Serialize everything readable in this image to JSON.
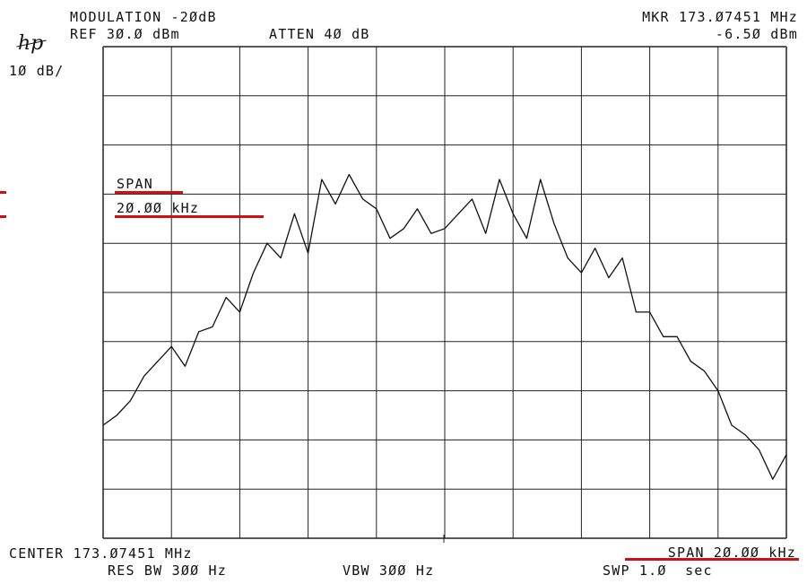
{
  "header": {
    "title": "MODULATION -2ØdB",
    "ref": "REF 3Ø.Ø dBm",
    "atten": "ATTEN 4Ø dB",
    "marker_freq": "MKR 173.Ø7451 MHz",
    "marker_level": "-6.5Ø dBm",
    "scale": "1Ø dB/"
  },
  "brand": {
    "logo": "hp"
  },
  "annotation": {
    "span_label": "SPAN",
    "span_value": "2Ø.ØØ kHz"
  },
  "footer": {
    "center": "CENTER 173.Ø7451 MHz",
    "span": "SPAN 2Ø.ØØ kHz",
    "res_bw": "RES BW 3ØØ Hz",
    "vbw": "VBW 3ØØ Hz",
    "swp": "SWP 1.Ø  sec"
  },
  "colors": {
    "trace": "#111111",
    "grid": "#222222",
    "highlight": "#d01010"
  },
  "chart_data": {
    "type": "line",
    "grid": true,
    "x_unit": "kHz offset from center",
    "y_unit": "dBm",
    "xlim": [
      -10,
      10
    ],
    "ylim": [
      -70,
      30
    ],
    "x": [
      -10,
      -9.6,
      -9.2,
      -8.8,
      -8.4,
      -8,
      -7.6,
      -7.2,
      -6.8,
      -6.4,
      -6,
      -5.6,
      -5.2,
      -4.8,
      -4.4,
      -4,
      -3.6,
      -3.2,
      -2.8,
      -2.4,
      -2,
      -1.6,
      -1.2,
      -0.8,
      -0.4,
      0,
      0.4,
      0.8,
      1.2,
      1.6,
      2,
      2.4,
      2.8,
      3.2,
      3.6,
      4,
      4.4,
      4.8,
      5.2,
      5.6,
      6,
      6.4,
      6.8,
      7.2,
      7.6,
      8,
      8.4,
      8.8,
      9.2,
      9.6,
      10
    ],
    "y": [
      -47,
      -45,
      -42,
      -37,
      -34,
      -31,
      -35,
      -28,
      -27,
      -21,
      -24,
      -16,
      -10,
      -13,
      -4,
      -12,
      3,
      -2,
      4,
      -1,
      -3,
      -9,
      -7,
      -3,
      -8,
      -7,
      -4,
      -1,
      -8,
      3,
      -4,
      -9,
      3,
      -6,
      -13,
      -16,
      -11,
      -17,
      -13,
      -24,
      -24,
      -29,
      -29,
      -34,
      -36,
      -40,
      -47,
      -49,
      -52,
      -58,
      -53
    ]
  }
}
